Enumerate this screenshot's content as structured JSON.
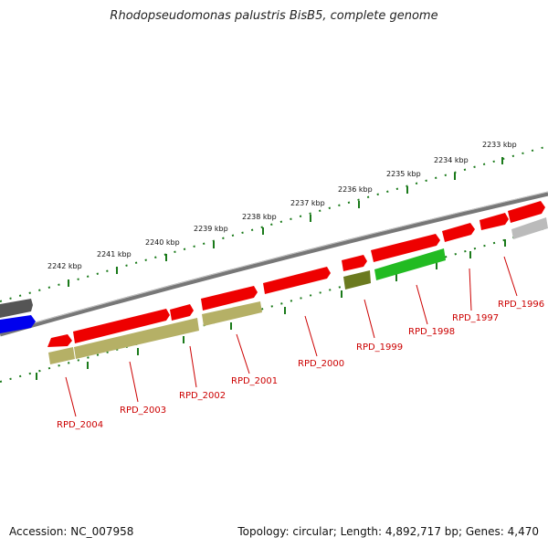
{
  "title": "Rhodopseudomonas palustris BisB5, complete genome",
  "footer": {
    "accession": "Accession: NC_007958",
    "summary": "Topology: circular; Length: 4,892,717 bp; Genes: 4,470"
  },
  "colors": {
    "backbone": "#777777",
    "ticks": "#1a7a1a",
    "label_line": "#cc0000",
    "label_text": "#cc0000",
    "strand_plus_gene": "#ee0000",
    "olive_feature": "#b5b066",
    "dark_olive_feature": "#6b7a1f",
    "green_feature": "#22bb22",
    "grey_feature": "#bbbbbb",
    "dark_grey_feature": "#555555",
    "blue_feature": "#0000ee"
  },
  "kbp_ticks": [
    {
      "label": "2233 kbp"
    },
    {
      "label": "2234 kbp"
    },
    {
      "label": "2235 kbp"
    },
    {
      "label": "2236 kbp"
    },
    {
      "label": "2237 kbp"
    },
    {
      "label": "2238 kbp"
    },
    {
      "label": "2239 kbp"
    },
    {
      "label": "2240 kbp"
    },
    {
      "label": "2241 kbp"
    },
    {
      "label": "2242 kbp"
    }
  ],
  "genes": [
    {
      "label": "RPD_1996"
    },
    {
      "label": "RPD_1997"
    },
    {
      "label": "RPD_1998"
    },
    {
      "label": "RPD_1999"
    },
    {
      "label": "RPD_2000"
    },
    {
      "label": "RPD_2001"
    },
    {
      "label": "RPD_2002"
    },
    {
      "label": "RPD_2003"
    },
    {
      "label": "RPD_2004"
    }
  ]
}
